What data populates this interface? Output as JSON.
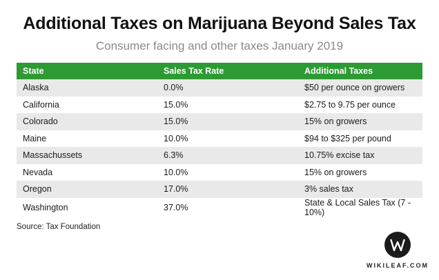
{
  "header": {
    "title": "Additional Taxes on Marijuana Beyond Sales Tax",
    "subtitle": "Consumer facing and other taxes January 2019"
  },
  "table": {
    "columns": [
      "State",
      "Sales Tax Rate",
      "Additional Taxes"
    ],
    "rows": [
      [
        "Alaska",
        "0.0%",
        "$50 per ounce on growers"
      ],
      [
        "California",
        "15.0%",
        "$2.75 to 9.75 per ounce"
      ],
      [
        "Colorado",
        "15.0%",
        "15% on growers"
      ],
      [
        "Maine",
        "10.0%",
        "$94 to $325 per pound"
      ],
      [
        "Massachussets",
        "6.3%",
        "10.75% excise tax"
      ],
      [
        "Nevada",
        "10.0%",
        "15% on growers"
      ],
      [
        "Oregon",
        "17.0%",
        "3% sales tax"
      ],
      [
        "Washington",
        "37.0%",
        "State & Local Sales Tax (7 - 10%)"
      ]
    ]
  },
  "footer": {
    "source": "Source: Tax Foundation",
    "brand": "WIKILEAF.COM",
    "logo_icon": "wikileaf-w-logo-icon"
  },
  "colors": {
    "header_green": "#2e9a33",
    "row_stripe": "#e9e9e9",
    "logo_dark": "#1b1b1b"
  }
}
